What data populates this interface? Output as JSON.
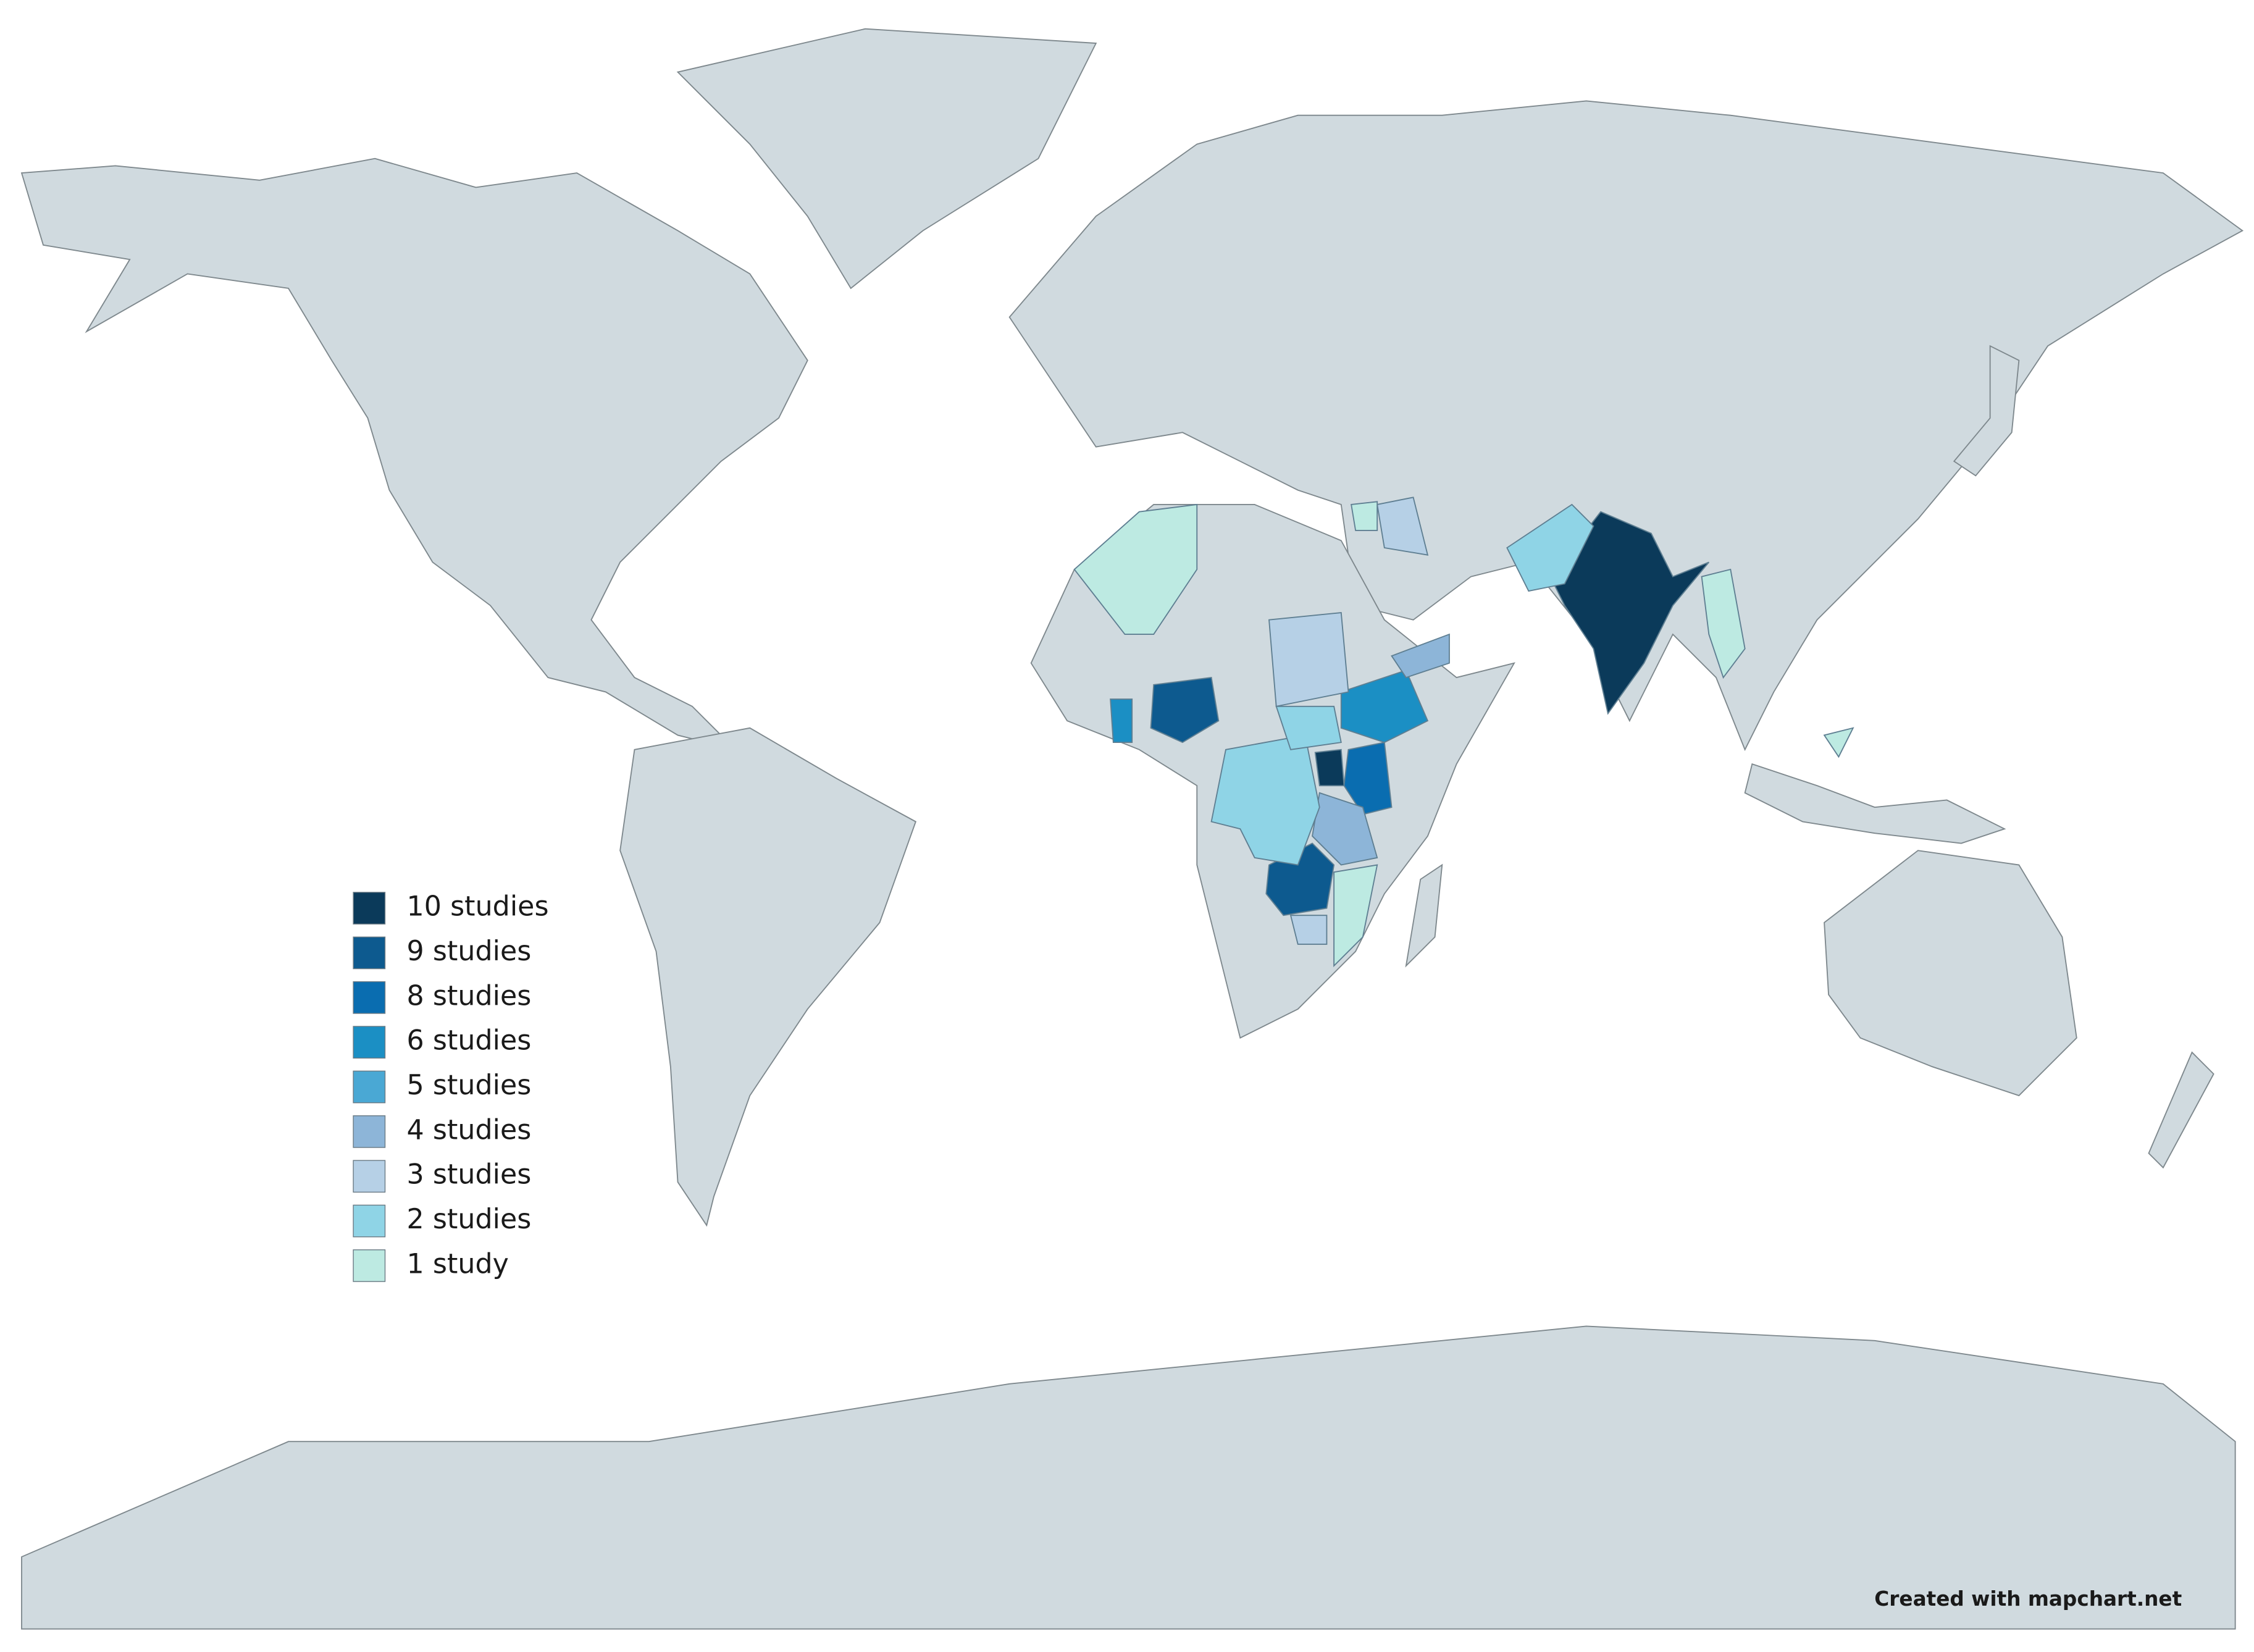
{
  "legend": {
    "items": [
      {
        "label": "10 studies",
        "color": "#0b3a5a"
      },
      {
        "label": "9 studies",
        "color": "#0d5a8f"
      },
      {
        "label": "8 studies",
        "color": "#0a6db0"
      },
      {
        "label": "6 studies",
        "color": "#1b8fc4"
      },
      {
        "label": "5 studies",
        "color": "#4aa8d4"
      },
      {
        "label": "4 studies",
        "color": "#8db5d8"
      },
      {
        "label": "3 studies",
        "color": "#b6d0e6"
      },
      {
        "label": "2 studies",
        "color": "#8fd4e6"
      },
      {
        "label": "1 study",
        "color": "#bdeae2"
      }
    ]
  },
  "credit": "Created with mapchart.net"
}
